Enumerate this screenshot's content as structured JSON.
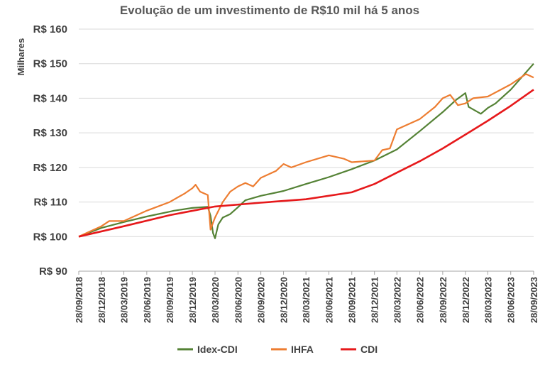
{
  "chart_data": {
    "type": "line",
    "title": "Evolução de um investimento de R$10 mil há 5 anos",
    "ylabel": "Milhares",
    "xlabel": "",
    "ylim": [
      90,
      160
    ],
    "yticks": [
      90,
      100,
      110,
      120,
      130,
      140,
      150,
      160
    ],
    "ytick_labels": [
      "R$ 90",
      "R$ 100",
      "R$ 110",
      "R$ 120",
      "R$ 130",
      "R$ 140",
      "R$ 150",
      "R$ 160"
    ],
    "x_tick_labels": [
      "28/09/2018",
      "28/12/2018",
      "28/03/2019",
      "28/06/2019",
      "28/09/2019",
      "28/12/2019",
      "28/03/2020",
      "28/06/2020",
      "28/09/2020",
      "28/12/2020",
      "28/03/2021",
      "28/06/2021",
      "28/09/2021",
      "28/12/2021",
      "28/03/2022",
      "28/06/2022",
      "28/09/2022",
      "28/12/2022",
      "28/03/2023",
      "28/06/2023",
      "28/09/2023"
    ],
    "grid": "horizontal",
    "legend_position": "bottom",
    "series": [
      {
        "name": "Idex-CDI",
        "color": "#548235",
        "x": [
          "28/09/2018",
          "28/12/2018",
          "28/03/2019",
          "28/06/2019",
          "28/09/2019",
          "15/10/2019",
          "28/12/2019",
          "28/02/2020",
          "10/03/2020",
          "20/03/2020",
          "28/03/2020",
          "10/04/2020",
          "28/04/2020",
          "28/05/2020",
          "28/06/2020",
          "28/07/2020",
          "28/09/2020",
          "28/12/2020",
          "28/03/2021",
          "28/06/2021",
          "28/09/2021",
          "28/12/2021",
          "28/03/2022",
          "28/06/2022",
          "28/09/2022",
          "20/11/2022",
          "28/12/2022",
          "10/01/2023",
          "28/02/2023",
          "28/03/2023",
          "28/04/2023",
          "28/06/2023",
          "28/09/2023"
        ],
        "y": [
          100.0,
          102.5,
          104.2,
          105.8,
          107.2,
          107.5,
          108.3,
          108.6,
          106.0,
          101.0,
          99.5,
          103.5,
          105.5,
          106.5,
          108.5,
          110.5,
          111.8,
          113.2,
          115.2,
          117.2,
          119.5,
          122.0,
          125.2,
          130.5,
          136.0,
          139.5,
          141.5,
          137.5,
          135.5,
          137.2,
          138.5,
          142.5,
          150.0
        ]
      },
      {
        "name": "IHFA",
        "color": "#ED7D31",
        "x": [
          "28/09/2018",
          "28/11/2018",
          "28/12/2018",
          "28/01/2019",
          "28/03/2019",
          "28/06/2019",
          "28/09/2019",
          "28/11/2019",
          "28/12/2019",
          "10/01/2020",
          "28/01/2020",
          "28/02/2020",
          "10/03/2020",
          "20/03/2020",
          "28/03/2020",
          "28/04/2020",
          "28/05/2020",
          "28/06/2020",
          "28/07/2020",
          "28/08/2020",
          "28/09/2020",
          "28/11/2020",
          "28/12/2020",
          "28/01/2021",
          "28/03/2021",
          "28/06/2021",
          "28/08/2021",
          "28/09/2021",
          "28/12/2021",
          "28/01/2022",
          "28/02/2022",
          "28/03/2022",
          "28/06/2022",
          "28/08/2022",
          "28/09/2022",
          "28/10/2022",
          "28/11/2022",
          "28/12/2022",
          "28/01/2023",
          "28/03/2023",
          "28/06/2023",
          "28/08/2023",
          "28/09/2023"
        ],
        "y": [
          100.0,
          102.0,
          103.0,
          104.5,
          104.5,
          107.5,
          110.0,
          112.5,
          114.0,
          115.0,
          113.0,
          112.0,
          102.0,
          104.0,
          105.5,
          110.0,
          113.0,
          114.5,
          115.5,
          114.5,
          117.0,
          119.0,
          121.0,
          120.0,
          121.5,
          123.5,
          122.5,
          121.5,
          122.0,
          125.0,
          125.5,
          131.0,
          134.0,
          137.5,
          140.0,
          141.0,
          138.0,
          138.5,
          140.0,
          140.5,
          144.0,
          147.0,
          146.0
        ]
      },
      {
        "name": "CDI",
        "color": "#E6191B",
        "x": [
          "28/09/2018",
          "28/03/2019",
          "28/09/2019",
          "28/03/2020",
          "28/09/2020",
          "28/03/2021",
          "28/09/2021",
          "28/12/2021",
          "28/03/2022",
          "28/06/2022",
          "28/09/2022",
          "28/12/2022",
          "28/03/2023",
          "28/06/2023",
          "28/09/2023"
        ],
        "y": [
          100.0,
          103.0,
          106.2,
          108.7,
          109.8,
          110.8,
          112.8,
          115.2,
          118.5,
          121.8,
          125.5,
          129.5,
          133.5,
          137.8,
          142.5
        ]
      }
    ]
  }
}
